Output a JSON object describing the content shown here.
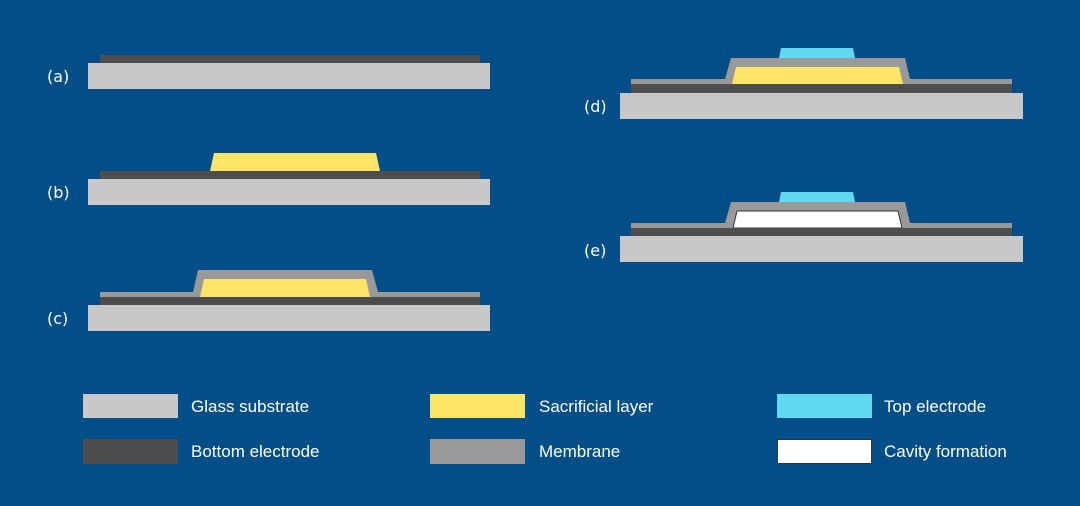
{
  "colors": {
    "background": "#014f86",
    "glass_substrate": "#c8c8c8",
    "bottom_electrode": "#4d4d4d",
    "sacrificial_layer": "#ffe566",
    "membrane": "#999999",
    "top_electrode": "#5fd9ef",
    "cavity": "#ffffff"
  },
  "steps": [
    {
      "label": "(a)"
    },
    {
      "label": "(b)"
    },
    {
      "label": "(c)"
    },
    {
      "label": "(d)"
    },
    {
      "label": "(e)"
    }
  ],
  "legend": [
    {
      "label": "Glass substrate"
    },
    {
      "label": "Bottom electrode"
    },
    {
      "label": "Sacrificial layer"
    },
    {
      "label": "Membrane"
    },
    {
      "label": "Top electrode"
    },
    {
      "label": "Cavity formation"
    }
  ]
}
